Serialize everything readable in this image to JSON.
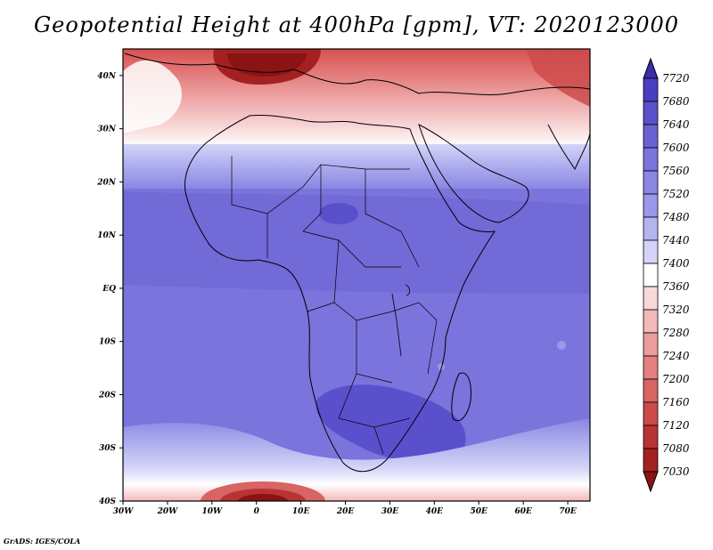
{
  "title": "Geopotential Height at 400hPa [gpm], VT: 2020123000",
  "credit": "GrADS: IGES/COLA",
  "map": {
    "variable": "Geopotential Height",
    "level": "400hPa",
    "units": "gpm",
    "valid_time": "2020123000",
    "lon_range": [
      -30,
      75
    ],
    "lat_range": [
      -40,
      45
    ],
    "x_ticks": [
      "30W",
      "20W",
      "10W",
      "0",
      "10E",
      "20E",
      "30E",
      "40E",
      "50E",
      "60E",
      "70E"
    ],
    "y_ticks": [
      "40N",
      "30N",
      "20N",
      "10N",
      "EQ",
      "10S",
      "20S",
      "30S",
      "40S"
    ]
  },
  "colorbar": {
    "labels": [
      "7720",
      "7680",
      "7640",
      "7600",
      "7560",
      "7520",
      "7480",
      "7440",
      "7400",
      "7360",
      "7320",
      "7280",
      "7240",
      "7200",
      "7160",
      "7120",
      "7080",
      "7030"
    ],
    "colors": [
      "#3d2bb0",
      "#4a3ec0",
      "#5a50cc",
      "#6a62d4",
      "#7a74dc",
      "#8a86e2",
      "#9a98e8",
      "#b4b4f0",
      "#d4d4f8",
      "#ffffff",
      "#f8d8d8",
      "#f4b8b8",
      "#ec9c9c",
      "#e48080",
      "#d86464",
      "#cc4a4a",
      "#b83434",
      "#a52020",
      "#8a1414"
    ]
  },
  "colors": {
    "land_outline": "#000000",
    "frame": "#000000"
  }
}
